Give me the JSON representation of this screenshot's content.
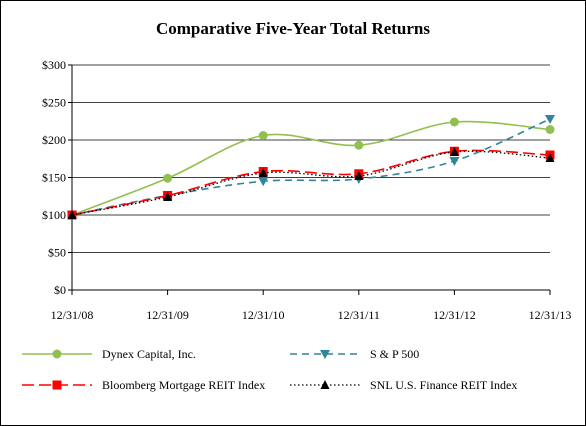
{
  "chart_data": {
    "type": "line",
    "title": "Comparative Five-Year Total Returns",
    "xlabel": "",
    "ylabel": "",
    "categories": [
      "12/31/08",
      "12/31/09",
      "12/31/10",
      "12/31/11",
      "12/31/12",
      "12/31/13"
    ],
    "y_ticks": [
      "$0",
      "$50",
      "$100",
      "$150",
      "$200",
      "$250",
      "$300"
    ],
    "ylim": [
      0,
      300
    ],
    "grid": "horizontal",
    "legend_position": "bottom",
    "series": [
      {
        "name": "Dynex Capital, Inc.",
        "values": [
          100,
          149,
          206,
          193,
          224,
          214
        ],
        "color": "#92c050",
        "line": "solid",
        "marker": "circle",
        "smooth": true
      },
      {
        "name": "S & P 500",
        "values": [
          100,
          126,
          145,
          148,
          172,
          228
        ],
        "color": "#31849b",
        "line": "dashed",
        "marker": "triangle-down",
        "smooth": true
      },
      {
        "name": "Bloomberg Mortgage REIT Index",
        "values": [
          100,
          126,
          158,
          155,
          185,
          180
        ],
        "color": "#ff0000",
        "line": "longdash",
        "marker": "square",
        "smooth": true
      },
      {
        "name": "SNL U.S. Finance REIT Index",
        "values": [
          100,
          124,
          156,
          152,
          184,
          176
        ],
        "color": "#000000",
        "line": "dotted",
        "marker": "triangle-up",
        "smooth": true
      }
    ]
  }
}
